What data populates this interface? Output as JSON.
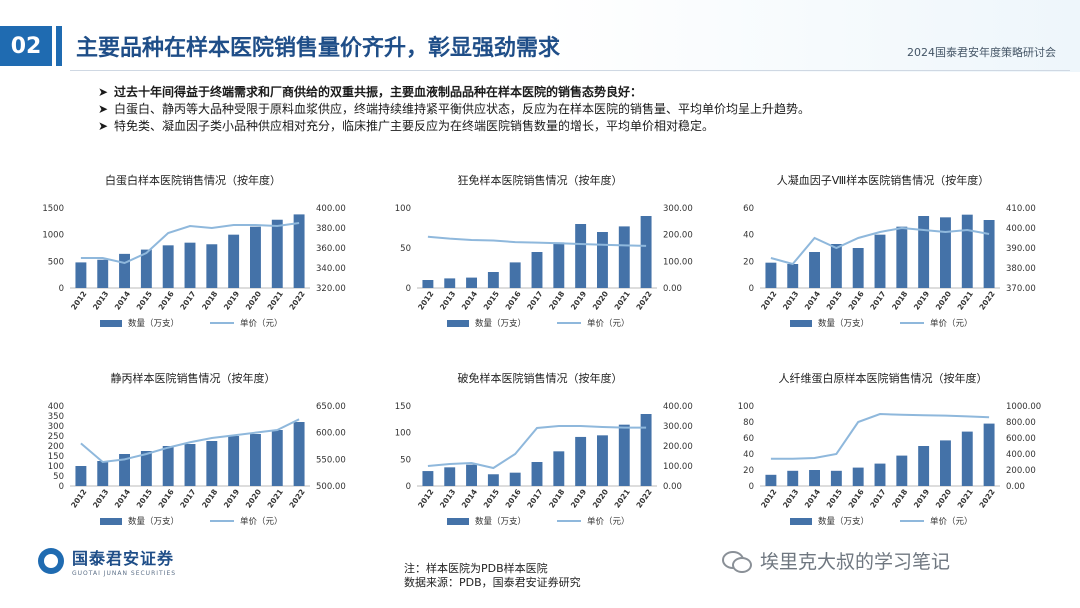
{
  "header": {
    "section_number": "02",
    "title": "主要品种在样本医院销售量价齐升，彰显强劲需求",
    "event": "2024国泰君安年度策略研讨会"
  },
  "bullets": {
    "lead": "过去十年间得益于终端需求和厂商供给的双重共振，主要血液制品品种在样本医院的销售态势良好：",
    "items": [
      "白蛋白、静丙等大品种受限于原料血浆供应，终端持续维持紧平衡供应状态，反应为在样本医院的销售量、平均单价均呈上升趋势。",
      "特免类、凝血因子类小品种供应相对充分，临床推广主要反应为在终端医院销售数量的增长，平均单价相对稳定。"
    ]
  },
  "chart_data": [
    {
      "type": "bar",
      "title": "白蛋白样本医院销售情况（按年度）",
      "categories": [
        "2012",
        "2013",
        "2014",
        "2015",
        "2016",
        "2017",
        "2018",
        "2019",
        "2020",
        "2021",
        "2022"
      ],
      "series": [
        {
          "name": "数量（万支）",
          "type": "bar",
          "axis": "left",
          "values": [
            480,
            530,
            640,
            720,
            800,
            850,
            820,
            1000,
            1150,
            1280,
            1380
          ]
        },
        {
          "name": "单价（元）",
          "type": "line",
          "axis": "right",
          "values": [
            350,
            350,
            345,
            355,
            375,
            382,
            380,
            383,
            383,
            382,
            385
          ]
        }
      ],
      "ylim_left": [
        0,
        1500
      ],
      "yticks_left": [
        "0",
        "500",
        "1000",
        "1500"
      ],
      "ylim_right": [
        320,
        400
      ],
      "yticks_right": [
        "320.00",
        "340.00",
        "360.00",
        "380.00",
        "400.00"
      ],
      "legend": "bottom"
    },
    {
      "type": "bar",
      "title": "狂免样本医院销售情况（按年度）",
      "categories": [
        "2012",
        "2013",
        "2014",
        "2015",
        "2016",
        "2017",
        "2018",
        "2019",
        "2020",
        "2021",
        "2022"
      ],
      "series": [
        {
          "name": "数量（万支）",
          "type": "bar",
          "axis": "left",
          "values": [
            10,
            12,
            13,
            20,
            32,
            45,
            57,
            80,
            70,
            77,
            90
          ]
        },
        {
          "name": "单价（元）",
          "type": "line",
          "axis": "right",
          "values": [
            192,
            185,
            180,
            178,
            172,
            170,
            168,
            165,
            162,
            160,
            158
          ]
        }
      ],
      "ylim_left": [
        0,
        100
      ],
      "yticks_left": [
        "0",
        "50",
        "100"
      ],
      "ylim_right": [
        0,
        300
      ],
      "yticks_right": [
        "0.00",
        "100.00",
        "200.00",
        "300.00"
      ],
      "legend": "bottom"
    },
    {
      "type": "bar",
      "title": "人凝血因子Ⅷ样本医院销售情况（按年度）",
      "categories": [
        "2012",
        "2013",
        "2014",
        "2015",
        "2016",
        "2017",
        "2018",
        "2019",
        "2020",
        "2021",
        "2022"
      ],
      "series": [
        {
          "name": "数量（万支）",
          "type": "bar",
          "axis": "left",
          "values": [
            19,
            18,
            27,
            33,
            30,
            40,
            46,
            54,
            53,
            55,
            51
          ]
        },
        {
          "name": "单价（元）",
          "type": "line",
          "axis": "right",
          "values": [
            385,
            382,
            395,
            390,
            395,
            398,
            400,
            399,
            398,
            399,
            397
          ]
        }
      ],
      "ylim_left": [
        0,
        60
      ],
      "yticks_left": [
        "0",
        "20",
        "40",
        "60"
      ],
      "ylim_right": [
        370,
        410
      ],
      "yticks_right": [
        "370.00",
        "380.00",
        "390.00",
        "400.00",
        "410.00"
      ],
      "legend": "bottom"
    },
    {
      "type": "bar",
      "title": "静丙样本医院销售情况（按年度）",
      "categories": [
        "2012",
        "2013",
        "2014",
        "2015",
        "2016",
        "2017",
        "2018",
        "2019",
        "2020",
        "2021",
        "2022"
      ],
      "series": [
        {
          "name": "数量（万支）",
          "type": "bar",
          "axis": "left",
          "values": [
            100,
            125,
            160,
            175,
            200,
            210,
            225,
            250,
            260,
            280,
            320
          ]
        },
        {
          "name": "单价（元）",
          "type": "line",
          "axis": "right",
          "values": [
            580,
            545,
            550,
            560,
            572,
            582,
            590,
            595,
            600,
            605,
            625
          ]
        }
      ],
      "ylim_left": [
        0,
        400
      ],
      "yticks_left": [
        "0",
        "50",
        "100",
        "150",
        "200",
        "250",
        "300",
        "350",
        "400"
      ],
      "ylim_right": [
        500,
        650
      ],
      "yticks_right": [
        "500.00",
        "550.00",
        "600.00",
        "650.00"
      ],
      "legend": "bottom"
    },
    {
      "type": "bar",
      "title": "破免样本医院销售情况（按年度）",
      "categories": [
        "2012",
        "2013",
        "2014",
        "2015",
        "2016",
        "2017",
        "2018",
        "2019",
        "2020",
        "2021",
        "2022"
      ],
      "series": [
        {
          "name": "数量（万支）",
          "type": "bar",
          "axis": "left",
          "values": [
            28,
            35,
            40,
            22,
            25,
            45,
            65,
            92,
            95,
            115,
            135
          ]
        },
        {
          "name": "单价（元）",
          "type": "line",
          "axis": "right",
          "values": [
            100,
            110,
            115,
            90,
            160,
            290,
            300,
            300,
            295,
            292,
            292
          ]
        }
      ],
      "ylim_left": [
        0,
        150
      ],
      "yticks_left": [
        "0",
        "50",
        "100",
        "150"
      ],
      "ylim_right": [
        0,
        400
      ],
      "yticks_right": [
        "0.00",
        "100.00",
        "200.00",
        "300.00",
        "400.00"
      ],
      "legend": "bottom"
    },
    {
      "type": "bar",
      "title": "人纤维蛋白原样本医院销售情况（按年度）",
      "categories": [
        "2012",
        "2013",
        "2014",
        "2015",
        "2016",
        "2017",
        "2018",
        "2019",
        "2020",
        "2021",
        "2022"
      ],
      "series": [
        {
          "name": "数量（万支）",
          "type": "bar",
          "axis": "left",
          "values": [
            14,
            19,
            20,
            19,
            23,
            28,
            38,
            50,
            57,
            68,
            78
          ]
        },
        {
          "name": "单价（元）",
          "type": "line",
          "axis": "right",
          "values": [
            340,
            340,
            350,
            400,
            800,
            900,
            890,
            885,
            880,
            870,
            860
          ]
        }
      ],
      "ylim_left": [
        0,
        100
      ],
      "yticks_left": [
        "0",
        "20",
        "40",
        "60",
        "80",
        "100"
      ],
      "ylim_right": [
        0,
        1000
      ],
      "yticks_right": [
        "0.00",
        "200.00",
        "400.00",
        "600.00",
        "800.00",
        "1000.00"
      ],
      "legend": "bottom"
    }
  ],
  "footer": {
    "logo_cn": "国泰君安证券",
    "logo_en": "GUOTAI JUNAN SECURITIES",
    "note_line1": "注：样本医院为PDB样本医院",
    "note_line2": "数据来源：PDB，国泰君安证券研究",
    "watermark": "埃里克大叔的学习笔记"
  },
  "colors": {
    "bar": "#4472a8",
    "line": "#8fb8dc",
    "accent": "#1f6bb1"
  }
}
